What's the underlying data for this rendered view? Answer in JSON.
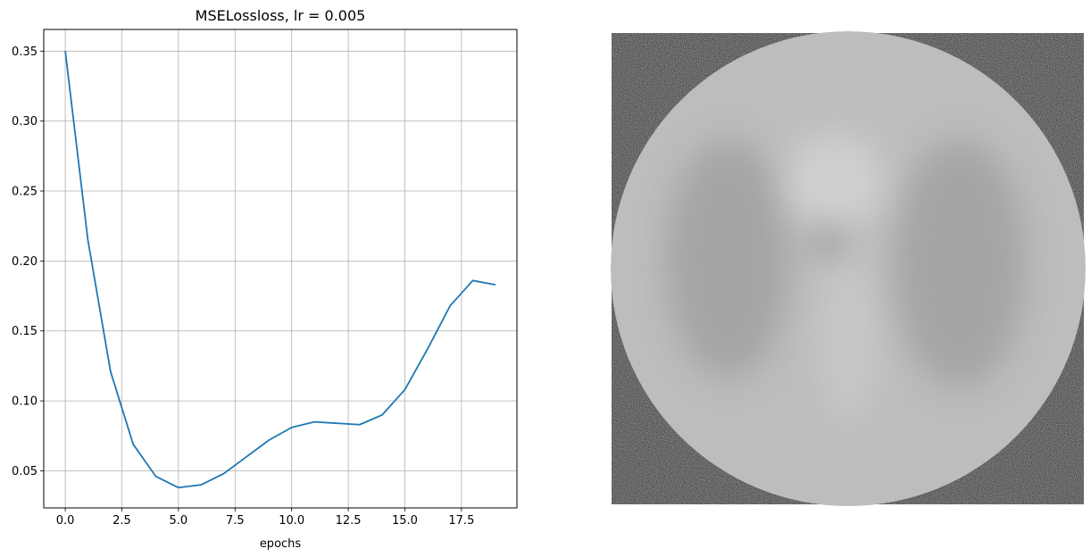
{
  "chart_data": {
    "type": "line",
    "title": "MSELossloss, lr = 0.005",
    "xlabel": "epochs",
    "ylabel": "",
    "xlim": [
      -0.95,
      19.95
    ],
    "ylim": [
      0.0235,
      0.3655
    ],
    "xticks": [
      0.0,
      2.5,
      5.0,
      7.5,
      10.0,
      12.5,
      15.0,
      17.5
    ],
    "xtick_labels": [
      "0.0",
      "2.5",
      "5.0",
      "7.5",
      "10.0",
      "12.5",
      "15.0",
      "17.5"
    ],
    "yticks": [
      0.05,
      0.1,
      0.15,
      0.2,
      0.25,
      0.3,
      0.35
    ],
    "ytick_labels": [
      "0.05",
      "0.10",
      "0.15",
      "0.20",
      "0.25",
      "0.30",
      "0.35"
    ],
    "grid": true,
    "series": [
      {
        "color": "#1f77b4",
        "x": [
          0,
          1,
          2,
          3,
          4,
          5,
          6,
          7,
          8,
          9,
          10,
          11,
          12,
          13,
          14,
          15,
          16,
          17,
          18,
          19
        ],
        "values": [
          0.35,
          0.215,
          0.121,
          0.069,
          0.046,
          0.038,
          0.04,
          0.048,
          0.06,
          0.072,
          0.081,
          0.085,
          0.084,
          0.083,
          0.09,
          0.108,
          0.137,
          0.168,
          0.186,
          0.183
        ]
      }
    ]
  },
  "image_panel": {
    "description_icon": "ct-scan-image",
    "background_color": "#1c1c1c",
    "disc_color": "#bdbdbd"
  }
}
